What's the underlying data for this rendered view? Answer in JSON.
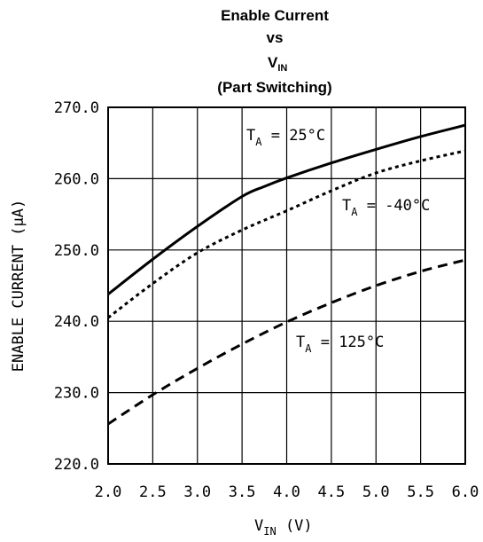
{
  "chart_data": {
    "type": "line",
    "title": {
      "line1": "Enable Current",
      "line2": "vs",
      "line3_main": "V",
      "line3_sub": "IN",
      "line4": "(Part Switching)"
    },
    "xlabel": {
      "main": "V",
      "sub": "IN",
      "rest": " (V)"
    },
    "ylabel": "ENABLE CURRENT (μA)",
    "xlim": [
      2.0,
      6.0
    ],
    "ylim": [
      220.0,
      270.0
    ],
    "x_ticks": [
      "2.0",
      "2.5",
      "3.0",
      "3.5",
      "4.0",
      "4.5",
      "5.0",
      "5.5",
      "6.0"
    ],
    "x_tick_values": [
      2.0,
      2.5,
      3.0,
      3.5,
      4.0,
      4.5,
      5.0,
      5.5,
      6.0
    ],
    "y_ticks": [
      "270.0",
      "260.0",
      "250.0",
      "240.0",
      "230.0",
      "220.0"
    ],
    "y_tick_values": [
      270.0,
      260.0,
      250.0,
      240.0,
      230.0,
      220.0
    ],
    "grid": true,
    "legend": "none",
    "series": [
      {
        "name": "TA = 25°C",
        "style": "solid",
        "x": [
          2.0,
          2.5,
          3.0,
          3.5,
          3.75,
          4.0,
          4.5,
          5.0,
          5.5,
          6.0
        ],
        "y": [
          243.8,
          248.7,
          253.3,
          257.5,
          258.9,
          260.1,
          262.2,
          264.1,
          265.9,
          267.5
        ]
      },
      {
        "name": "TA = -40°C",
        "style": "dotted",
        "x": [
          2.0,
          2.5,
          3.0,
          3.5,
          4.0,
          4.5,
          5.0,
          5.5,
          6.0
        ],
        "y": [
          240.5,
          245.3,
          249.6,
          252.8,
          255.5,
          258.3,
          260.8,
          262.5,
          263.9
        ]
      },
      {
        "name": "TA = 125°C",
        "style": "dashed",
        "x": [
          2.0,
          2.5,
          3.0,
          3.5,
          4.0,
          4.5,
          5.0,
          5.5,
          6.0
        ],
        "y": [
          225.6,
          229.7,
          233.4,
          236.8,
          239.9,
          242.6,
          245.0,
          247.0,
          248.6
        ]
      }
    ],
    "annotations": [
      {
        "series": 0,
        "main": "T",
        "sub": "A",
        "rest": " = 25°C"
      },
      {
        "series": 1,
        "main": "T",
        "sub": "A",
        "rest": " = -40°C"
      },
      {
        "series": 2,
        "main": "T",
        "sub": "A",
        "rest": " = 125°C"
      }
    ]
  }
}
